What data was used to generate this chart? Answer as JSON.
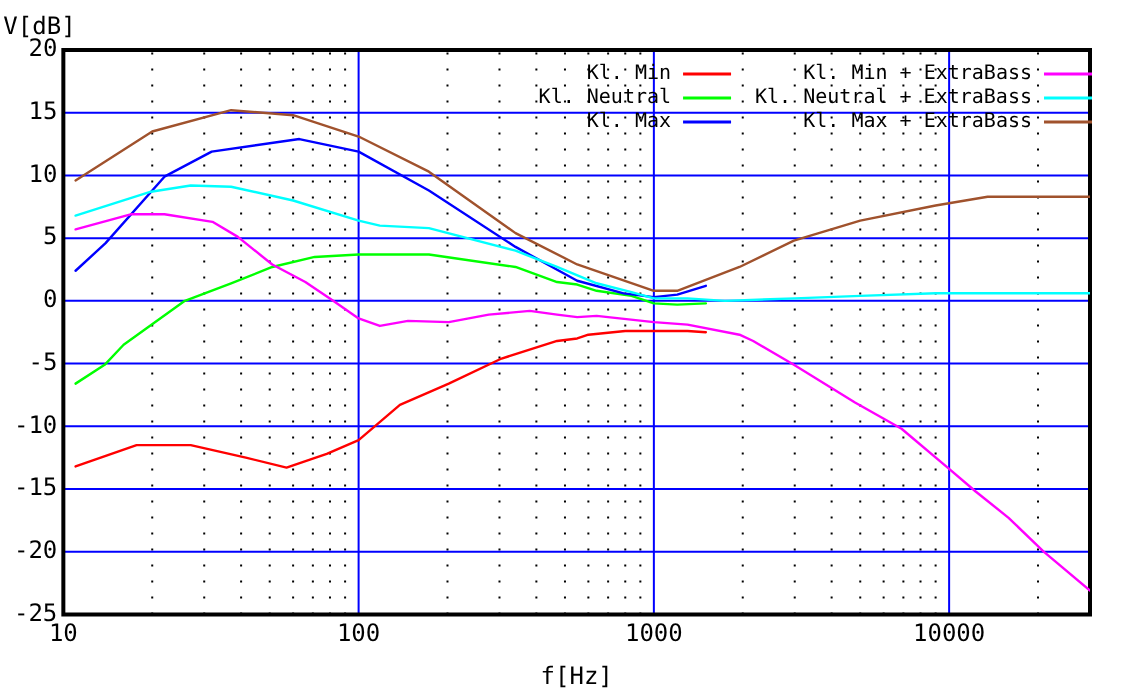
{
  "chart_data": {
    "type": "line",
    "xlabel": "f[Hz]",
    "ylabel": "V[dB]",
    "log": "x",
    "xlim": [
      10,
      30000
    ],
    "ylim": [
      -25,
      20
    ],
    "xticks": [
      10,
      {
        "value": 20,
        "label": null
      },
      {
        "value": 30,
        "label": null
      },
      {
        "value": 40,
        "label": null
      },
      {
        "value": 50,
        "label": null
      },
      {
        "value": 60,
        "label": null
      },
      {
        "value": 70,
        "label": null
      },
      {
        "value": 80,
        "label": null
      },
      {
        "value": 90,
        "label": null
      },
      100,
      {
        "value": 200,
        "label": null
      },
      {
        "value": 300,
        "label": null
      },
      {
        "value": 400,
        "label": null
      },
      {
        "value": 500,
        "label": null
      },
      {
        "value": 600,
        "label": null
      },
      {
        "value": 700,
        "label": null
      },
      {
        "value": 800,
        "label": null
      },
      {
        "value": 900,
        "label": null
      },
      1000,
      {
        "value": 2000,
        "label": null
      },
      {
        "value": 3000,
        "label": null
      },
      {
        "value": 4000,
        "label": null
      },
      {
        "value": 5000,
        "label": null
      },
      {
        "value": 6000,
        "label": null
      },
      {
        "value": 7000,
        "label": null
      },
      {
        "value": 8000,
        "label": null
      },
      {
        "value": 9000,
        "label": null
      },
      10000,
      {
        "value": 20000,
        "label": null
      }
    ],
    "yticks": [
      -25,
      -20,
      -15,
      -10,
      -5,
      0,
      5,
      10,
      15,
      20
    ],
    "grid": true,
    "legend": "top right",
    "marker": "none",
    "line_style": "solid",
    "series": [
      {
        "name": "Kl. Min",
        "color": "#ff0000",
        "x": [
          11,
          17.7,
          27,
          41.5,
          57,
          78,
          100,
          138,
          202,
          305,
          470,
          550,
          600,
          800,
          1300,
          1500
        ],
        "values": [
          -13.2,
          -11.5,
          -11.5,
          -12.5,
          -13.3,
          -12.2,
          -11.1,
          -8.3,
          -6.6,
          -4.6,
          -3.2,
          -3.0,
          -2.7,
          -2.4,
          -2.4,
          -2.5
        ]
      },
      {
        "name": "Kl. Neutral",
        "color": "#00ff00",
        "x": [
          11,
          13.8,
          16,
          25.8,
          37,
          51,
          71,
          100,
          173,
          340,
          470,
          550,
          640,
          840,
          1000,
          1200,
          1500
        ],
        "values": [
          -6.6,
          -5.1,
          -3.5,
          0,
          1.4,
          2.7,
          3.5,
          3.7,
          3.7,
          2.7,
          1.5,
          1.3,
          0.8,
          0.4,
          -0.2,
          -0.3,
          -0.2
        ]
      },
      {
        "name": "Kl. Max",
        "color": "#0000ff",
        "x": [
          11,
          13.9,
          22,
          31.8,
          63,
          100,
          173,
          340,
          550,
          790,
          1000,
          1200,
          1500
        ],
        "values": [
          2.4,
          4.6,
          9.9,
          11.9,
          12.9,
          11.9,
          8.8,
          4.3,
          1.6,
          0.6,
          0.3,
          0.5,
          1.2
        ]
      },
      {
        "name": "Kl. Min + ExtraBass",
        "color": "#ff00ff",
        "x": [
          11,
          16.9,
          22,
          32,
          39,
          51,
          66,
          82,
          100,
          118,
          147,
          202,
          276,
          380,
          470,
          550,
          640,
          1000,
          1300,
          1950,
          2170,
          2980,
          4800,
          6900,
          10000,
          12300,
          15900,
          20900,
          30000
        ],
        "values": [
          5.7,
          6.9,
          6.9,
          6.3,
          5.1,
          2.9,
          1.5,
          0,
          -1.4,
          -2,
          -1.6,
          -1.7,
          -1.1,
          -0.8,
          -1.1,
          -1.3,
          -1.2,
          -1.7,
          -1.9,
          -2.7,
          -3.2,
          -5.1,
          -8.1,
          -10.2,
          -13.4,
          -15.2,
          -17.3,
          -20,
          -23.1
        ]
      },
      {
        "name": "Kl. Neutral + ExtraBass",
        "color": "#00ffff",
        "x": [
          11,
          19.8,
          27,
          37,
          60,
          100,
          118,
          173,
          340,
          470,
          640,
          840,
          1000,
          1300,
          1740,
          3000,
          5000,
          9000,
          30000
        ],
        "values": [
          6.8,
          8.7,
          9.2,
          9.1,
          8,
          6.4,
          6,
          5.8,
          4,
          2.7,
          1.4,
          0.7,
          0.2,
          0.2,
          0,
          0.2,
          0.4,
          0.6,
          0.6
        ]
      },
      {
        "name": "Kl. Max + ExtraBass",
        "color": "#a0522d",
        "x": [
          11,
          20,
          37,
          60,
          100,
          173,
          340,
          550,
          1000,
          1200,
          1950,
          2980,
          5000,
          9000,
          13500,
          30000
        ],
        "values": [
          9.6,
          13.5,
          15.2,
          14.8,
          13.1,
          10.3,
          5.4,
          2.9,
          0.8,
          0.8,
          2.7,
          4.8,
          6.4,
          7.6,
          8.3,
          8.3
        ]
      }
    ]
  }
}
